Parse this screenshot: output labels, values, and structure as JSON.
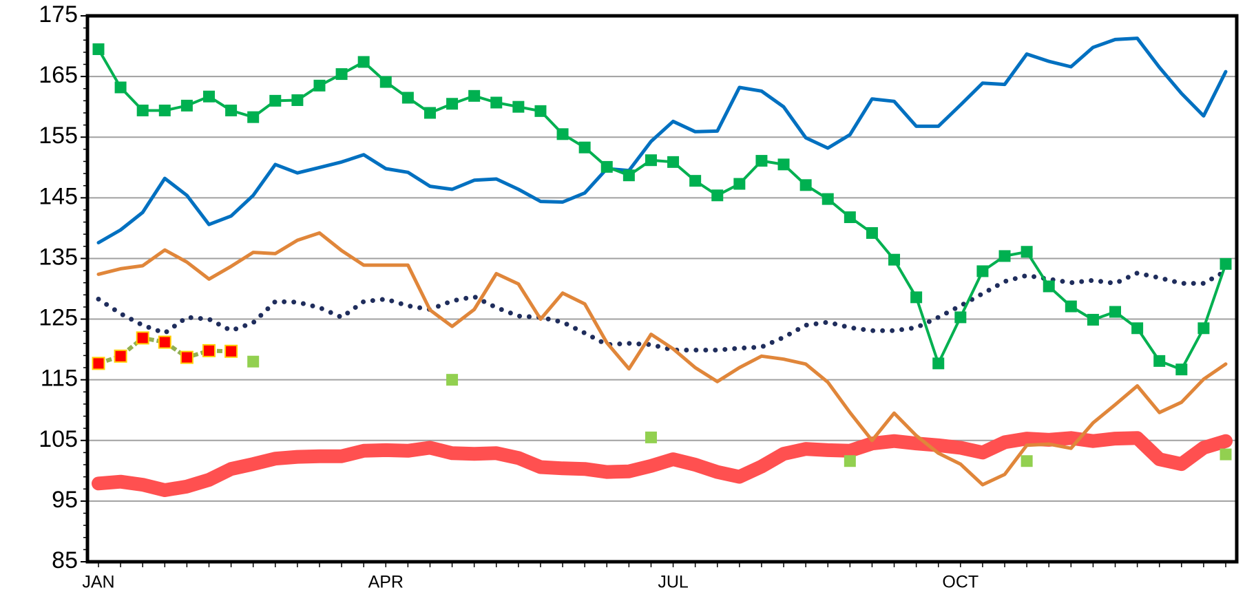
{
  "chart_data": {
    "type": "line",
    "categories": [
      "JAN",
      null,
      null,
      null,
      null,
      null,
      null,
      null,
      null,
      null,
      null,
      null,
      null,
      "APR",
      null,
      null,
      null,
      null,
      null,
      null,
      null,
      null,
      null,
      null,
      null,
      null,
      "JUL",
      null,
      null,
      null,
      null,
      null,
      null,
      null,
      null,
      null,
      null,
      null,
      null,
      "OCT",
      null,
      null,
      null,
      null,
      null,
      null,
      null,
      null,
      null,
      null,
      null,
      null
    ],
    "ylim": [
      85,
      175
    ],
    "yticks": [
      85,
      95,
      105,
      115,
      125,
      135,
      145,
      155,
      165,
      175
    ],
    "grid": true,
    "series": [
      {
        "color": "#FF5050",
        "line_width": 20,
        "values": [
          97.9,
          98.2,
          97.7,
          96.8,
          97.4,
          98.5,
          100.3,
          101.1,
          102.0,
          102.3,
          102.4,
          102.4,
          103.3,
          103.4,
          103.3,
          103.8,
          102.9,
          102.8,
          102.9,
          102.1,
          100.6,
          100.4,
          100.3,
          99.8,
          99.9,
          100.8,
          101.9,
          101.0,
          99.8,
          99.0,
          100.7,
          102.8,
          103.6,
          103.4,
          103.3,
          104.5,
          104.9,
          104.5,
          104.2,
          103.8,
          103.0,
          104.7,
          105.3,
          105.1,
          105.4,
          104.9,
          105.3,
          105.4,
          101.9,
          101.1,
          103.8,
          104.9
        ]
      },
      {
        "color": "#1F2D5C",
        "line_width": 7,
        "dash": "dotted",
        "values": [
          128.3,
          125.9,
          124.0,
          122.7,
          125.3,
          125.0,
          123.1,
          124.4,
          127.9,
          127.8,
          126.9,
          125.3,
          127.9,
          128.3,
          127.2,
          126.6,
          128.0,
          128.7,
          126.9,
          125.5,
          125.3,
          124.5,
          122.7,
          120.8,
          121.0,
          120.8,
          119.9,
          119.9,
          119.9,
          120.2,
          120.4,
          122.0,
          124.0,
          124.5,
          123.6,
          123.1,
          123.1,
          123.6,
          125.3,
          127.2,
          129.2,
          131.2,
          132.2,
          131.6,
          131.0,
          131.4,
          130.9,
          132.6,
          131.8,
          130.9,
          130.9,
          132.9
        ]
      },
      {
        "color": "#E0863A",
        "line_width": 5,
        "values": [
          132.4,
          133.3,
          133.8,
          136.4,
          134.4,
          131.6,
          133.7,
          136.0,
          135.8,
          138.0,
          139.2,
          136.3,
          133.9,
          133.9,
          133.9,
          126.5,
          123.8,
          126.6,
          132.5,
          130.8,
          125.0,
          129.3,
          127.5,
          121.1,
          116.8,
          122.5,
          120.1,
          117.0,
          114.7,
          117.0,
          118.9,
          118.4,
          117.6,
          114.6,
          109.6,
          105.0,
          109.5,
          105.8,
          102.9,
          101.1,
          97.7,
          99.4,
          104.2,
          104.4,
          103.7,
          107.9,
          110.9,
          114.0,
          109.6,
          111.3,
          115.1,
          117.6
        ]
      },
      {
        "color": "#0070C0",
        "line_width": 5,
        "values": [
          137.6,
          139.7,
          142.6,
          148.2,
          145.4,
          140.6,
          142.0,
          145.4,
          150.5,
          149.1,
          150.0,
          150.9,
          152.1,
          149.8,
          149.2,
          146.9,
          146.4,
          147.9,
          148.1,
          146.4,
          144.4,
          144.3,
          145.8,
          149.8,
          149.5,
          154.3,
          157.6,
          155.9,
          156.0,
          163.2,
          162.6,
          160.0,
          154.9,
          153.2,
          155.4,
          161.3,
          160.9,
          156.8,
          156.8,
          160.3,
          163.9,
          163.7,
          168.7,
          167.5,
          166.6,
          169.8,
          171.1,
          171.3,
          166.5,
          162.2,
          158.5,
          165.8
        ]
      },
      {
        "color": "#00B050",
        "line_width": 4,
        "marker": "square",
        "marker_color": "#00B050",
        "values": [
          169.5,
          163.2,
          159.4,
          159.4,
          160.2,
          161.7,
          159.4,
          158.3,
          161.0,
          161.1,
          163.5,
          165.4,
          167.4,
          164.1,
          161.5,
          159.0,
          160.5,
          161.8,
          160.7,
          160.0,
          159.3,
          155.5,
          153.3,
          150.1,
          148.7,
          151.2,
          150.9,
          147.8,
          145.4,
          147.3,
          151.1,
          150.5,
          147.1,
          144.8,
          141.8,
          139.2,
          134.8,
          128.6,
          117.7,
          125.3,
          132.9,
          135.4,
          136.1,
          130.4,
          127.1,
          124.9,
          126.2,
          123.5,
          118.1,
          116.7,
          123.5,
          134.1
        ]
      },
      {
        "color": "#92B050",
        "line_width": 6,
        "dash": "dashed",
        "marker": "square",
        "marker_color": "#FF0000",
        "marker_edge": "#FFD000",
        "values": [
          117.7,
          118.9,
          121.9,
          121.2,
          118.7,
          119.8,
          119.7,
          null,
          null,
          null,
          null,
          null,
          null,
          null,
          null,
          null,
          null,
          null,
          null,
          null,
          null,
          null,
          null,
          null,
          null,
          null,
          null,
          null,
          null,
          null,
          null,
          null,
          null,
          null,
          null,
          null,
          null,
          null,
          null,
          null,
          null,
          null,
          null,
          null,
          null,
          null,
          null,
          null,
          null,
          null,
          null,
          null
        ]
      },
      {
        "color": "#92D050",
        "line": false,
        "marker": "square",
        "marker_color": "#92D050",
        "values": [
          null,
          null,
          null,
          null,
          null,
          null,
          null,
          118.0,
          null,
          null,
          null,
          null,
          null,
          null,
          null,
          null,
          115.0,
          null,
          null,
          null,
          null,
          null,
          null,
          null,
          null,
          105.5,
          null,
          null,
          null,
          null,
          null,
          null,
          null,
          null,
          101.6,
          null,
          null,
          null,
          null,
          null,
          null,
          null,
          101.6,
          null,
          null,
          null,
          null,
          null,
          null,
          null,
          null,
          102.7
        ]
      }
    ]
  }
}
